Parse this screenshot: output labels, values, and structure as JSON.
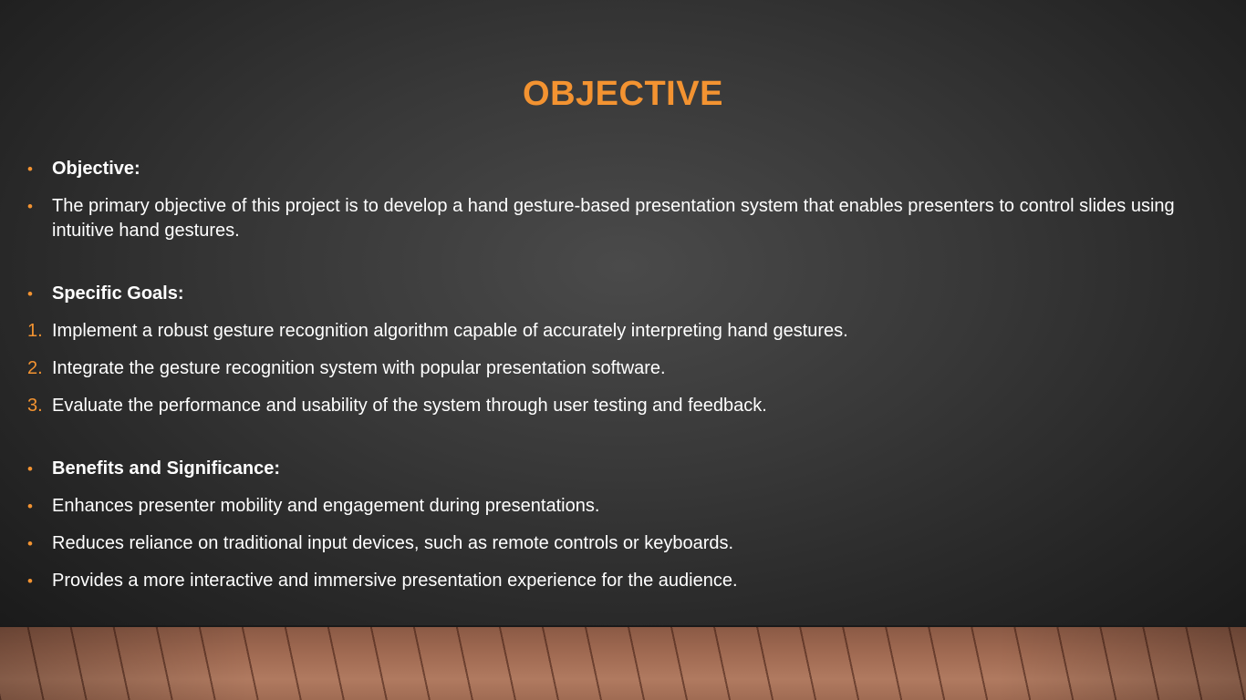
{
  "slide": {
    "title": "OBJECTIVE",
    "accent_color": "#f39331",
    "text_color": "#ffffff",
    "items": [
      {
        "marker": "•",
        "text": "Objective:",
        "bold": true
      },
      {
        "marker": "•",
        "text": "The primary objective of this project is to develop a hand gesture-based presentation system that enables presenters to control slides using intuitive hand gestures.",
        "bold": false
      },
      {
        "marker": "•",
        "text": "Specific Goals:",
        "bold": true
      },
      {
        "marker": "1.",
        "text": "Implement a robust gesture recognition algorithm capable of accurately interpreting hand gestures.",
        "bold": false
      },
      {
        "marker": "2.",
        "text": "Integrate the gesture recognition system with popular presentation software.",
        "bold": false
      },
      {
        "marker": "3.",
        "text": "Evaluate the performance and usability of the system through user testing and feedback.",
        "bold": false
      },
      {
        "marker": "•",
        "text": "Benefits and Significance:",
        "bold": true
      },
      {
        "marker": "•",
        "text": "Enhances presenter mobility and engagement during presentations.",
        "bold": false
      },
      {
        "marker": "•",
        "text": "Reduces reliance on traditional input devices, such as remote controls or keyboards.",
        "bold": false
      },
      {
        "marker": "•",
        "text": "Provides a more interactive and immersive presentation experience for the audience.",
        "bold": false
      }
    ]
  }
}
